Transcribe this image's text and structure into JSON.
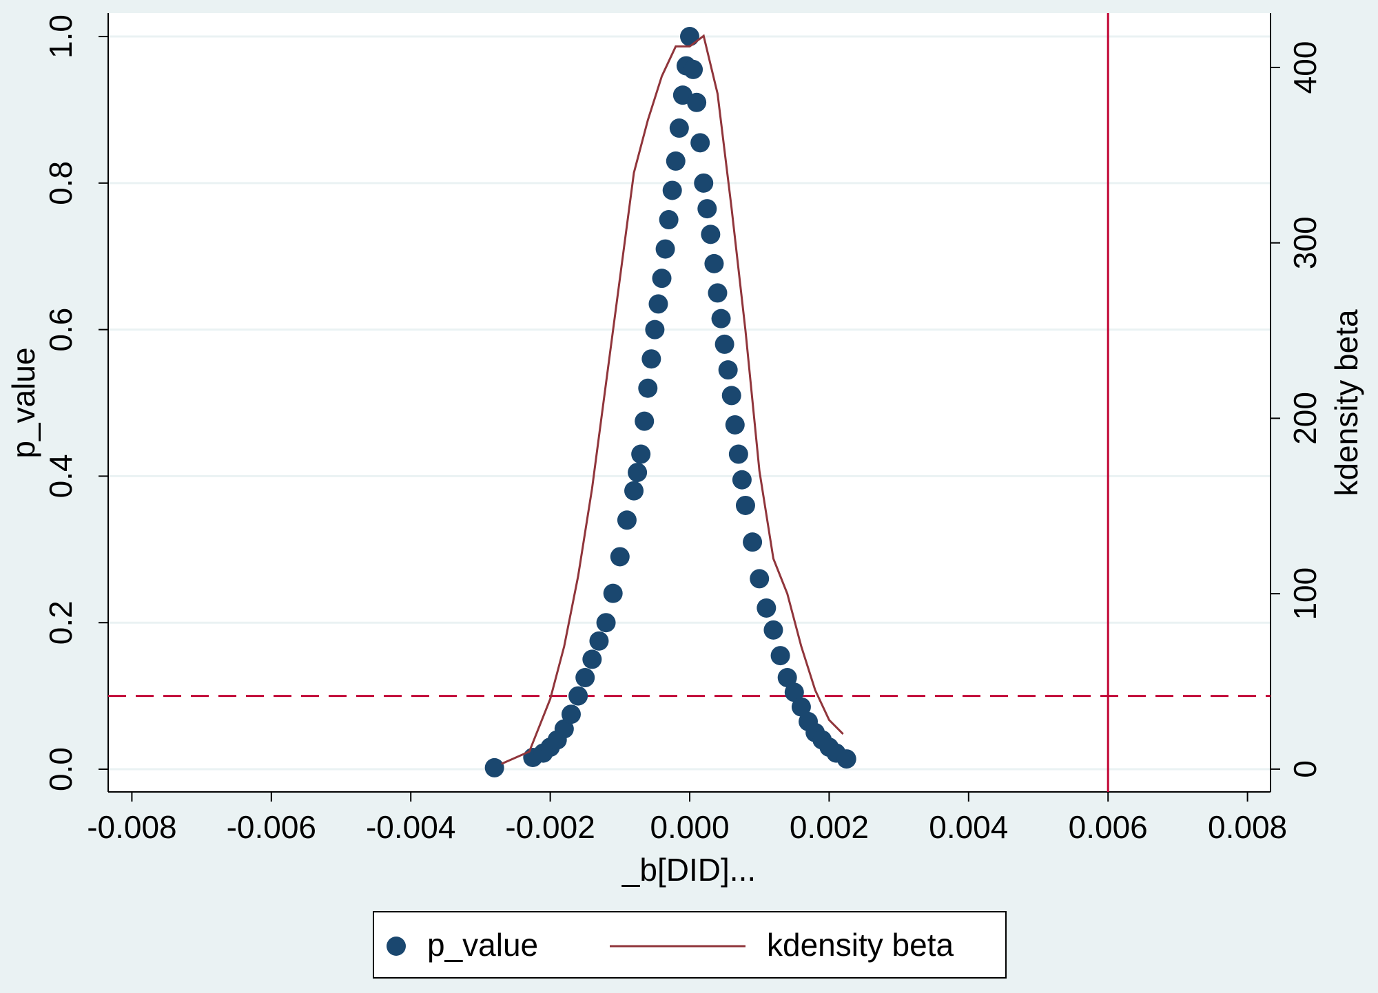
{
  "chart_data": {
    "type": "scatter",
    "xlabel": "_b[DID]...",
    "ylabel": "p_value",
    "y2label": "kdensity beta",
    "xlim": [
      -0.00834,
      0.00833
    ],
    "xticks": [
      -0.008,
      -0.006,
      -0.004,
      -0.002,
      {
        "value": 0,
        "label": "0.000"
      },
      0.002,
      0.004,
      0.006,
      0.008
    ],
    "ylim": [
      -0.031,
      1.032
    ],
    "yticks": [
      {
        "value": 0,
        "label": "0.0"
      },
      0.2,
      0.4,
      0.6,
      0.8,
      {
        "value": 1,
        "label": "1.0"
      }
    ],
    "y2lim": [
      -13,
      431
    ],
    "y2ticks": [
      0,
      100,
      200,
      300,
      400
    ],
    "grid": true,
    "reference_lines": {
      "y": 0.1,
      "x": 0.006,
      "color": "#c10534"
    },
    "series": [
      {
        "name": "p_value",
        "type": "scatter",
        "color": "#1a476f",
        "x": [
          -0.0028,
          -0.00225,
          -0.0021,
          -0.002,
          -0.0019,
          -0.0018,
          -0.0017,
          -0.0016,
          -0.0015,
          -0.0014,
          -0.0013,
          -0.0012,
          -0.0011,
          -0.001,
          -0.0009,
          -0.0008,
          -0.00075,
          -0.0007,
          -0.00065,
          -0.0006,
          -0.00055,
          -0.0005,
          -0.00045,
          -0.0004,
          -0.00035,
          -0.0003,
          -0.00025,
          -0.0002,
          -0.00015,
          -0.0001,
          -5e-05,
          0,
          5e-05,
          0.0001,
          0.00015,
          0.0002,
          0.00025,
          0.0003,
          0.00035,
          0.0004,
          0.00045,
          0.0005,
          0.00055,
          0.0006,
          0.00065,
          0.0007,
          0.00075,
          0.0008,
          0.0009,
          0.001,
          0.0011,
          0.0012,
          0.0013,
          0.0014,
          0.0015,
          0.0016,
          0.0017,
          0.0018,
          0.0019,
          0.002,
          0.0021,
          0.00225
        ],
        "values": [
          0.002,
          0.016,
          0.022,
          0.03,
          0.04,
          0.055,
          0.075,
          0.1,
          0.125,
          0.15,
          0.175,
          0.2,
          0.24,
          0.29,
          0.34,
          0.38,
          0.405,
          0.43,
          0.475,
          0.52,
          0.56,
          0.6,
          0.635,
          0.67,
          0.71,
          0.75,
          0.79,
          0.83,
          0.875,
          0.92,
          0.96,
          1.0,
          0.955,
          0.91,
          0.855,
          0.8,
          0.765,
          0.73,
          0.69,
          0.65,
          0.615,
          0.58,
          0.545,
          0.51,
          0.47,
          0.43,
          0.395,
          0.36,
          0.31,
          0.26,
          0.22,
          0.19,
          0.155,
          0.125,
          0.105,
          0.085,
          0.065,
          0.05,
          0.04,
          0.03,
          0.022,
          0.014
        ]
      },
      {
        "name": "kdensity beta",
        "type": "line",
        "axis": "y2",
        "color": "#90353b",
        "x": [
          -0.0027,
          -0.0023,
          -0.002,
          -0.0018,
          -0.0016,
          -0.0014,
          -0.0012,
          -0.001,
          -0.0008,
          -0.0006,
          -0.0004,
          -0.0002,
          0,
          0.0002,
          0.0004,
          0.0006,
          0.0008,
          0.001,
          0.0012,
          0.0014,
          0.0016,
          0.0018,
          0.002,
          0.0022
        ],
        "values": [
          3,
          10,
          40,
          70,
          110,
          160,
          220,
          280,
          340,
          370,
          395,
          412,
          412,
          418,
          385,
          320,
          250,
          170,
          120,
          100,
          70,
          45,
          28,
          20
        ]
      }
    ]
  }
}
